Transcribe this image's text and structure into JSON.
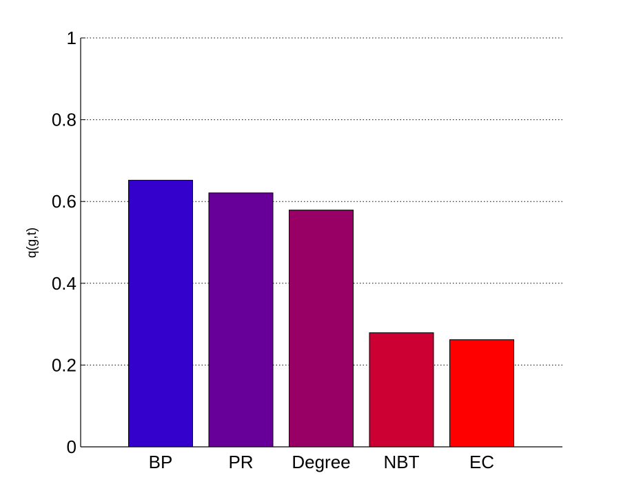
{
  "chart_data": {
    "type": "bar",
    "categories": [
      "BP",
      "PR",
      "Degree",
      "NBT",
      "EC"
    ],
    "values": [
      0.652,
      0.621,
      0.579,
      0.279,
      0.262
    ],
    "colors": [
      "#3300cc",
      "#660099",
      "#990066",
      "#cc0033",
      "#ff0000"
    ],
    "title": "",
    "xlabel": "",
    "ylabel": "q(g,t)",
    "ylim": [
      0,
      1
    ],
    "yticks": [
      0,
      0.2,
      0.4,
      0.6,
      0.8,
      1
    ],
    "ytick_labels": [
      "0",
      "0.2",
      "0.4",
      "0.6",
      "0.8",
      "1"
    ],
    "grid": "horizontal dotted",
    "legend": "none"
  }
}
